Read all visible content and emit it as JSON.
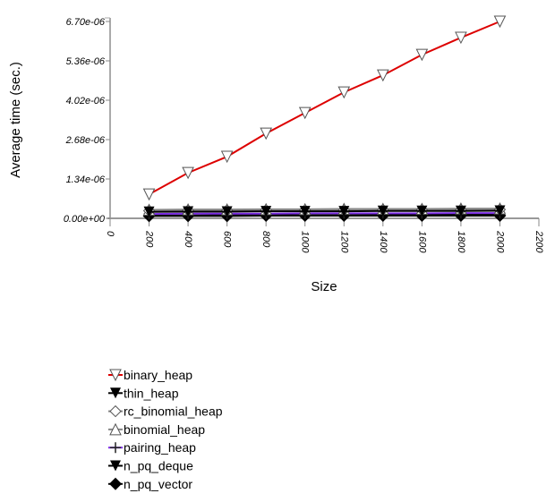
{
  "chart_data": {
    "type": "line",
    "title": "",
    "xlabel": "Size",
    "ylabel": "Average time (sec.)",
    "xlim": [
      0,
      2200
    ],
    "ylim": [
      0,
      6.7e-06
    ],
    "xticks": [
      "0",
      "200",
      "400",
      "600",
      "800",
      "1000",
      "1200",
      "1400",
      "1600",
      "1800",
      "2000",
      "2200"
    ],
    "yticks": [
      "0.00e+00",
      "1.34e-06",
      "2.68e-06",
      "4.02e-06",
      "5.36e-06",
      "6.70e-06"
    ],
    "x": [
      200,
      400,
      600,
      800,
      1000,
      1200,
      1400,
      1600,
      1800,
      2000
    ],
    "grid": false,
    "legend_position": "bottom-left",
    "series": [
      {
        "name": "binary_heap",
        "color": "#dd0000",
        "marker": "triangle-down-open",
        "values": [
          8.2e-07,
          1.55e-06,
          2.1e-06,
          2.89e-06,
          3.59e-06,
          4.29e-06,
          4.87e-06,
          5.57e-06,
          6.15e-06,
          6.7e-06
        ]
      },
      {
        "name": "thin_heap",
        "color": "#000000",
        "marker": "triangle-down-filled",
        "values": [
          2.2e-07,
          2.3e-07,
          2.3e-07,
          2.4e-07,
          2.4e-07,
          2.4e-07,
          2.5e-07,
          2.5e-07,
          2.5e-07,
          2.6e-07
        ]
      },
      {
        "name": "rc_binomial_heap",
        "color": "#888888",
        "marker": "diamond-open",
        "values": [
          2.6e-07,
          2.7e-07,
          2.7e-07,
          2.8e-07,
          2.8e-07,
          2.8e-07,
          2.9e-07,
          2.9e-07,
          2.9e-07,
          3e-07
        ]
      },
      {
        "name": "binomial_heap",
        "color": "#888888",
        "marker": "triangle-up-open",
        "values": [
          2.9e-07,
          3e-07,
          3e-07,
          3.1e-07,
          3.1e-07,
          3.2e-07,
          3.2e-07,
          3.2e-07,
          3.3e-07,
          3.3e-07
        ]
      },
      {
        "name": "pairing_heap",
        "color": "#7a2be2",
        "marker": "plus",
        "values": [
          1.5e-07,
          1.6e-07,
          1.6e-07,
          1.6e-07,
          1.7e-07,
          1.7e-07,
          1.7e-07,
          1.7e-07,
          1.8e-07,
          1.8e-07
        ]
      },
      {
        "name": "n_pq_deque",
        "color": "#000000",
        "marker": "triangle-down-filled",
        "values": [
          1e-07,
          1e-07,
          1.1e-07,
          1.1e-07,
          1.1e-07,
          1.1e-07,
          1.2e-07,
          1.2e-07,
          1.2e-07,
          1.2e-07
        ]
      },
      {
        "name": "n_pq_vector",
        "color": "#000000",
        "marker": "diamond-filled",
        "values": [
          8e-08,
          8e-08,
          8e-08,
          9e-08,
          9e-08,
          9e-08,
          9e-08,
          9e-08,
          9e-08,
          9e-08
        ]
      }
    ]
  }
}
